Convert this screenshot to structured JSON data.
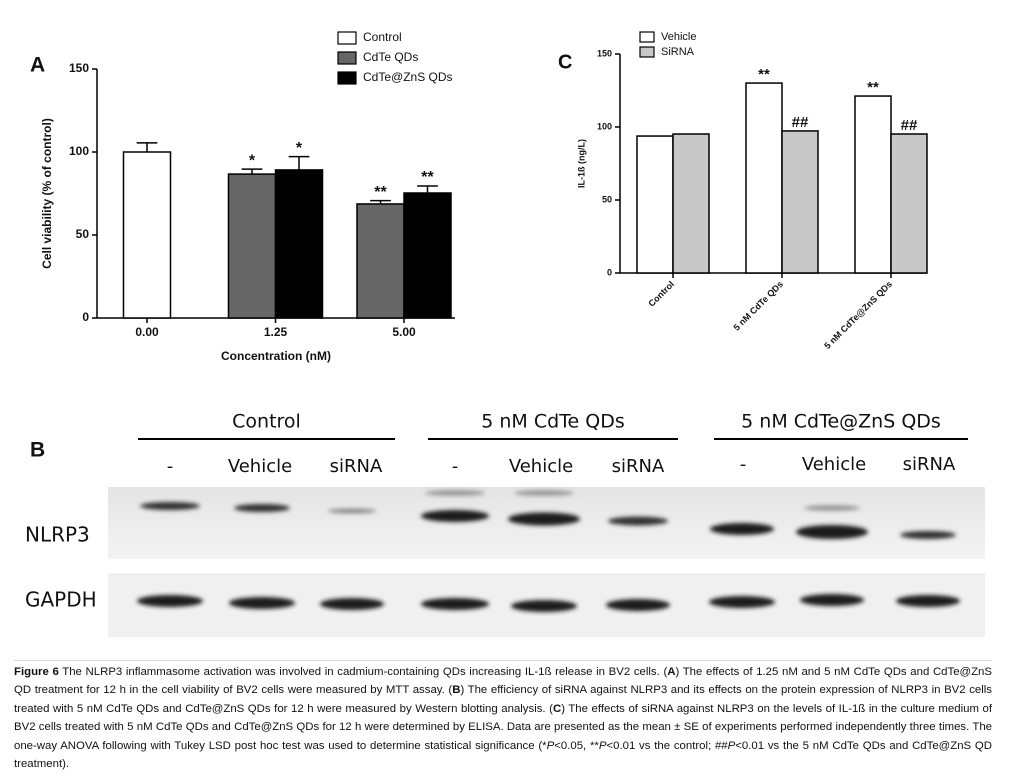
{
  "chart_data": [
    {
      "type": "bar",
      "panel": "A",
      "x_label": "Concentration (nM)",
      "y_label": "Cell viability (% of control)",
      "categories": [
        "0.00",
        "1.25",
        "5.00"
      ],
      "series": [
        {
          "name": "Control",
          "color": "#ffffff",
          "values": [
            100,
            null,
            null
          ],
          "errors": [
            5.5,
            null,
            null
          ],
          "significance": [
            null,
            null,
            null
          ]
        },
        {
          "name": "CdTe QDs",
          "color": "#666666",
          "values": [
            null,
            86.7,
            68.7
          ],
          "errors": [
            null,
            3,
            2
          ],
          "significance": [
            null,
            "*",
            "**"
          ]
        },
        {
          "name": "CdTe@ZnS QDs",
          "color": "#000000",
          "values": [
            null,
            89.2,
            75.3
          ],
          "errors": [
            null,
            8,
            4.2
          ],
          "significance": [
            null,
            "*",
            "**"
          ]
        }
      ],
      "ylim": [
        0,
        150
      ],
      "yticks": [
        0,
        50,
        100,
        150
      ]
    },
    {
      "type": "bar",
      "panel": "C",
      "y_label": "IL-1ß (ng/L)",
      "categories": [
        "Control",
        "5 nM CdTe QDs",
        "5 nM CdTe@ZnS QDs"
      ],
      "series": [
        {
          "name": "Vehicle",
          "color": "#ffffff",
          "values": [
            93.8,
            130.1,
            121.2
          ],
          "significance": [
            null,
            "**",
            "**"
          ]
        },
        {
          "name": "SiRNA",
          "color": "#c8c8c8",
          "values": [
            95.2,
            97.3,
            95.2
          ],
          "significance": [
            null,
            "##",
            "##"
          ]
        }
      ],
      "ylim": [
        0,
        150
      ],
      "yticks": [
        0,
        50,
        100,
        150
      ]
    }
  ],
  "blot": {
    "panel": "B",
    "groups": [
      {
        "name": "Control",
        "lanes": [
          "-",
          "Vehicle",
          "siRNA"
        ]
      },
      {
        "name": "5 nM CdTe QDs",
        "lanes": [
          "-",
          "Vehicle",
          "siRNA"
        ]
      },
      {
        "name": "5 nM CdTe@ZnS QDs",
        "lanes": [
          "-",
          "Vehicle",
          "siRNA"
        ]
      }
    ],
    "rows": [
      "NLRP3",
      "GAPDH"
    ]
  },
  "caption": {
    "parts": [
      "Figure 6",
      " The NLRP3 inflammasome activation was involved in cadmium-containing QDs increasing IL-1ß release in BV2 cells. (",
      "A",
      ") The effects of 1.25 nM and 5 nM CdTe QDs and CdTe@ZnS QD treatment for 12 h in the cell viability of BV2 cells were measured by MTT assay. (",
      "B",
      ") The efficiency of siRNA against NLRP3 and its effects on the protein expression of NLRP3 in BV2 cells treated with 5 nM CdTe QDs and CdTe@ZnS QDs for 12 h were measured by Western blotting analysis. (",
      "C",
      ") The effects of siRNA against NLRP3 on the levels of IL-1ß in the culture medium of BV2 cells treated with 5 nM CdTe QDs and CdTe@ZnS QDs for 12 h were determined by ELISA. Data are presented as the mean ± SE of experiments performed independently three times. The one-way ANOVA following with Tukey LSD post hoc test was used to determine statistical significance (*",
      "P",
      "<0.05, **",
      "P",
      "<0.01 vs the control; ##",
      "P",
      "<0.01 vs the 5 nM CdTe QDs and CdTe@ZnS QD treatment)."
    ]
  }
}
